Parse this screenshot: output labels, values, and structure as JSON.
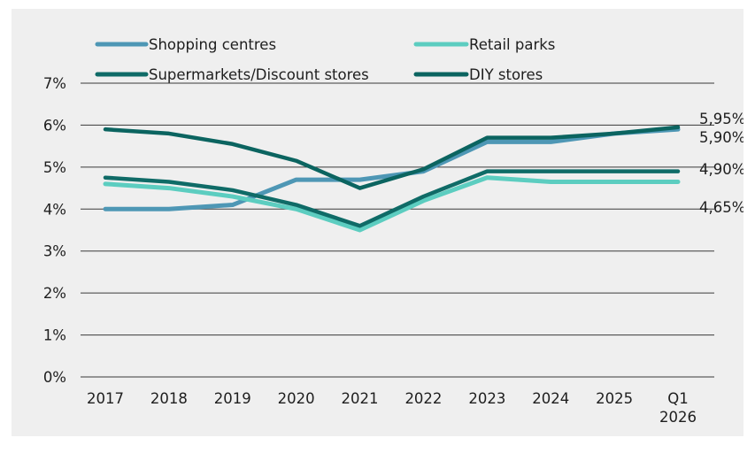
{
  "chart_data": {
    "type": "line",
    "categories": [
      "2017",
      "2018",
      "2019",
      "2020",
      "2021",
      "2022",
      "2023",
      "2024",
      "2025",
      "Q1\n2026"
    ],
    "ylim": [
      0,
      7
    ],
    "yticks": [
      "0%",
      "1%",
      "2%",
      "3%",
      "4%",
      "5%",
      "6%",
      "7%"
    ],
    "grid": true,
    "legend_position": "top",
    "series": [
      {
        "name": "Shopping centres",
        "color": "#4e97b5",
        "values": [
          4.0,
          4.0,
          4.1,
          4.7,
          4.7,
          4.9,
          5.6,
          5.6,
          5.8,
          5.9
        ]
      },
      {
        "name": "Retail parks",
        "color": "#5ccdc0",
        "values": [
          4.6,
          4.5,
          4.3,
          4.0,
          3.5,
          4.2,
          4.75,
          4.65,
          4.65,
          4.65
        ]
      },
      {
        "name": "Supermarkets/Discount stores",
        "color": "#0f6b67",
        "values": [
          4.75,
          4.65,
          4.45,
          4.1,
          3.6,
          4.3,
          4.9,
          4.9,
          4.9,
          4.9
        ]
      },
      {
        "name": "DIY stores",
        "color": "#0b6460",
        "values": [
          5.9,
          5.8,
          5.55,
          5.15,
          4.5,
          4.95,
          5.7,
          5.7,
          5.8,
          5.95
        ]
      }
    ],
    "end_labels": [
      "5,95%",
      "5,90%",
      "4,90%",
      "4,65%"
    ]
  }
}
